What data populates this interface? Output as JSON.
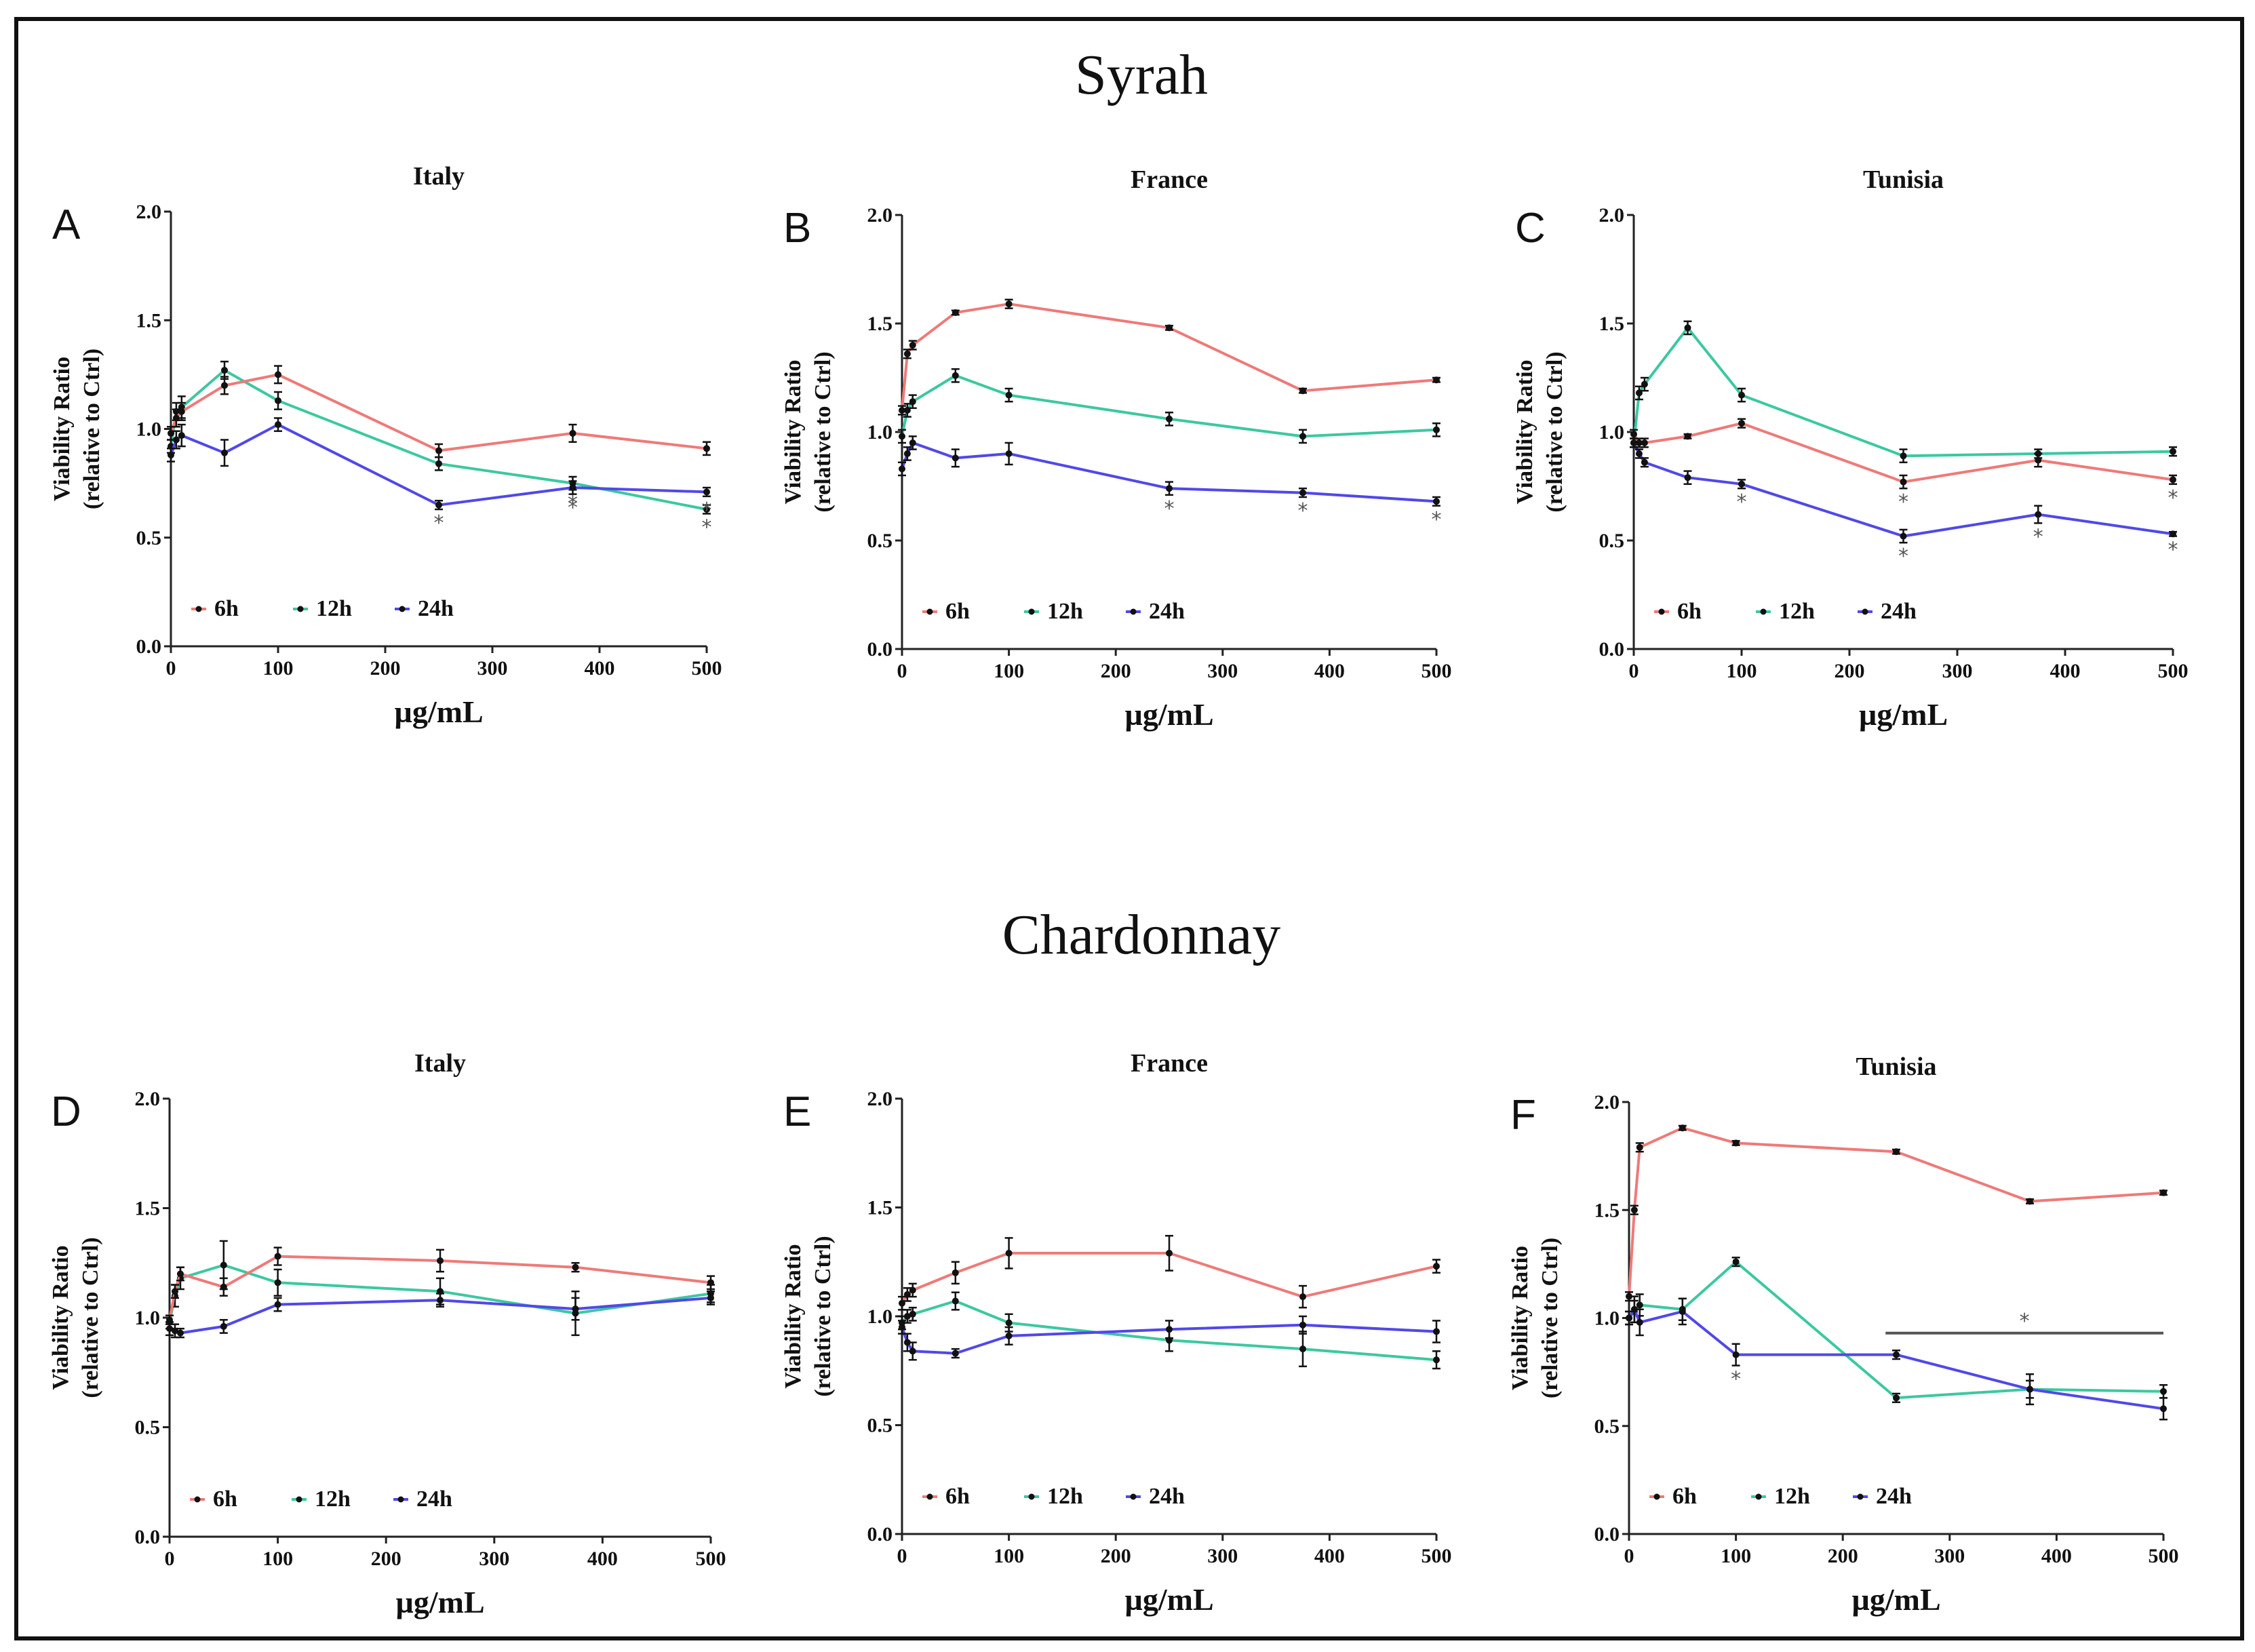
{
  "figure": {
    "sections": [
      {
        "title": "Syrah"
      },
      {
        "title": "Chardonnay"
      }
    ]
  },
  "colors": {
    "6h": "#ee7a78",
    "12h": "#3cc8a0",
    "24h": "#5148e8",
    "axis": "#222222",
    "marker": "#111111",
    "bracket": "#555555"
  },
  "chart_data": [
    {
      "type": "line",
      "panel": "A",
      "title": "Italy",
      "xlabel": "µg/mL",
      "ylabel_lines": [
        "Viability Ratio",
        "(relative to Ctrl)"
      ],
      "xlim": [
        0,
        500
      ],
      "ylim": [
        0,
        2.0
      ],
      "xticks": [
        "0",
        "100",
        "200",
        "300",
        "400",
        "500"
      ],
      "yticks": [
        "0.0",
        "0.5",
        "1.0",
        "1.5",
        "2.0"
      ],
      "legend": [
        "6h",
        "12h",
        "24h"
      ],
      "x": [
        0,
        5,
        10,
        50,
        100,
        250,
        375,
        500
      ],
      "series": [
        {
          "name": "6h",
          "values": [
            0.98,
            1.05,
            1.08,
            1.2,
            1.25,
            0.9,
            0.98,
            0.91
          ],
          "errors": [
            0.03,
            0.04,
            0.04,
            0.04,
            0.04,
            0.03,
            0.04,
            0.03
          ],
          "stars": [
            0,
            0,
            0,
            0,
            0,
            0,
            0,
            0
          ]
        },
        {
          "name": "12h",
          "values": [
            0.92,
            1.08,
            1.1,
            1.27,
            1.13,
            0.84,
            0.75,
            0.63
          ],
          "errors": [
            0.03,
            0.04,
            0.05,
            0.04,
            0.04,
            0.03,
            0.03,
            0.02
          ],
          "stars": [
            0,
            0,
            0,
            0,
            0,
            0,
            1,
            1
          ]
        },
        {
          "name": "24h",
          "values": [
            0.88,
            0.95,
            0.97,
            0.89,
            1.02,
            0.65,
            0.73,
            0.71
          ],
          "errors": [
            0.03,
            0.04,
            0.05,
            0.06,
            0.03,
            0.02,
            0.03,
            0.02
          ],
          "stars": [
            0,
            0,
            0,
            0,
            0,
            1,
            1,
            1
          ]
        }
      ]
    },
    {
      "type": "line",
      "panel": "B",
      "title": "France",
      "xlabel": "µg/mL",
      "ylabel_lines": [
        "Viability Ratio",
        "(relative to Ctrl)"
      ],
      "xlim": [
        0,
        500
      ],
      "ylim": [
        0,
        2.0
      ],
      "xticks": [
        "0",
        "100",
        "200",
        "300",
        "400",
        "500"
      ],
      "yticks": [
        "0.0",
        "0.5",
        "1.0",
        "1.5",
        "2.0"
      ],
      "legend": [
        "6h",
        "12h",
        "24h"
      ],
      "x": [
        0,
        5,
        10,
        50,
        100,
        250,
        375,
        500
      ],
      "series": [
        {
          "name": "6h",
          "values": [
            1.1,
            1.36,
            1.4,
            1.55,
            1.59,
            1.48,
            1.19,
            1.24
          ],
          "errors": [
            0.02,
            0.02,
            0.02,
            0.01,
            0.02,
            0.01,
            0.01,
            0.01
          ],
          "stars": [
            0,
            0,
            0,
            0,
            0,
            0,
            0,
            0
          ]
        },
        {
          "name": "12h",
          "values": [
            0.98,
            1.1,
            1.14,
            1.26,
            1.17,
            1.06,
            0.98,
            1.01
          ],
          "errors": [
            0.03,
            0.03,
            0.03,
            0.03,
            0.03,
            0.03,
            0.03,
            0.03
          ],
          "stars": [
            0,
            0,
            0,
            0,
            0,
            0,
            0,
            0
          ]
        },
        {
          "name": "24h",
          "values": [
            0.83,
            0.9,
            0.95,
            0.88,
            0.9,
            0.74,
            0.72,
            0.68
          ],
          "errors": [
            0.03,
            0.03,
            0.03,
            0.04,
            0.05,
            0.03,
            0.02,
            0.02
          ],
          "stars": [
            0,
            0,
            0,
            0,
            0,
            1,
            1,
            1
          ]
        }
      ]
    },
    {
      "type": "line",
      "panel": "C",
      "title": "Tunisia",
      "xlabel": "µg/mL",
      "ylabel_lines": [
        "Viability Ratio",
        "(relative to Ctrl)"
      ],
      "xlim": [
        0,
        500
      ],
      "ylim": [
        0,
        2.0
      ],
      "xticks": [
        "0",
        "100",
        "200",
        "300",
        "400",
        "500"
      ],
      "yticks": [
        "0.0",
        "0.5",
        "1.0",
        "1.5",
        "2.0"
      ],
      "legend": [
        "6h",
        "12h",
        "24h"
      ],
      "x": [
        0,
        5,
        10,
        50,
        100,
        250,
        375,
        500
      ],
      "series": [
        {
          "name": "6h",
          "values": [
            0.99,
            0.95,
            0.95,
            0.98,
            1.04,
            0.77,
            0.87,
            0.78
          ],
          "errors": [
            0.02,
            0.02,
            0.02,
            0.01,
            0.02,
            0.03,
            0.03,
            0.02
          ],
          "stars": [
            0,
            0,
            0,
            0,
            0,
            1,
            0,
            1
          ]
        },
        {
          "name": "12h",
          "values": [
            0.95,
            1.18,
            1.22,
            1.48,
            1.17,
            0.89,
            0.9,
            0.91
          ],
          "errors": [
            0.02,
            0.03,
            0.03,
            0.03,
            0.03,
            0.03,
            0.02,
            0.02
          ],
          "stars": [
            0,
            0,
            0,
            0,
            0,
            0,
            0,
            0
          ]
        },
        {
          "name": "24h",
          "values": [
            0.95,
            0.9,
            0.86,
            0.79,
            0.76,
            0.52,
            0.62,
            0.53
          ],
          "errors": [
            0.02,
            0.02,
            0.02,
            0.03,
            0.02,
            0.03,
            0.04,
            0.01
          ],
          "stars": [
            0,
            0,
            0,
            0,
            1,
            1,
            1,
            1
          ]
        }
      ]
    },
    {
      "type": "line",
      "panel": "D",
      "title": "Italy",
      "xlabel": "µg/mL",
      "ylabel_lines": [
        "Viability Ratio",
        "(relative to Ctrl)"
      ],
      "xlim": [
        0,
        500
      ],
      "ylim": [
        0,
        2.0
      ],
      "xticks": [
        "0",
        "100",
        "200",
        "300",
        "400",
        "500"
      ],
      "yticks": [
        "0.0",
        "0.5",
        "1.0",
        "1.5",
        "2.0"
      ],
      "legend": [
        "6h",
        "12h",
        "24h"
      ],
      "x": [
        0,
        5,
        10,
        50,
        100,
        250,
        375,
        500
      ],
      "series": [
        {
          "name": "6h",
          "values": [
            0.99,
            1.12,
            1.2,
            1.14,
            1.28,
            1.26,
            1.23,
            1.16
          ],
          "errors": [
            0.02,
            0.03,
            0.03,
            0.04,
            0.04,
            0.05,
            0.02,
            0.03
          ],
          "stars": [
            0,
            0,
            0,
            0,
            0,
            0,
            0,
            0
          ]
        },
        {
          "name": "12h",
          "values": [
            0.98,
            1.1,
            1.18,
            1.24,
            1.16,
            1.12,
            1.02,
            1.11
          ],
          "errors": [
            0.03,
            0.05,
            0.05,
            0.11,
            0.06,
            0.06,
            0.1,
            0.04
          ],
          "stars": [
            0,
            0,
            0,
            0,
            0,
            0,
            0,
            0
          ]
        },
        {
          "name": "24h",
          "values": [
            0.95,
            0.94,
            0.93,
            0.96,
            1.06,
            1.08,
            1.04,
            1.09
          ],
          "errors": [
            0.03,
            0.03,
            0.02,
            0.03,
            0.03,
            0.03,
            0.05,
            0.03
          ],
          "stars": [
            0,
            0,
            0,
            0,
            0,
            0,
            0,
            0
          ]
        }
      ]
    },
    {
      "type": "line",
      "panel": "E",
      "title": "France",
      "xlabel": "µg/mL",
      "ylabel_lines": [
        "Viability Ratio",
        "(relative to Ctrl)"
      ],
      "xlim": [
        0,
        500
      ],
      "ylim": [
        0,
        2.0
      ],
      "xticks": [
        "0",
        "100",
        "200",
        "300",
        "400",
        "500"
      ],
      "yticks": [
        "0.0",
        "0.5",
        "1.0",
        "1.5",
        "2.0"
      ],
      "legend": [
        "6h",
        "12h",
        "24h"
      ],
      "x": [
        0,
        5,
        10,
        50,
        100,
        250,
        375,
        500
      ],
      "series": [
        {
          "name": "6h",
          "values": [
            1.06,
            1.1,
            1.12,
            1.2,
            1.29,
            1.29,
            1.09,
            1.23
          ],
          "errors": [
            0.03,
            0.03,
            0.03,
            0.05,
            0.07,
            0.08,
            0.05,
            0.03
          ],
          "stars": [
            0,
            0,
            0,
            0,
            0,
            0,
            0,
            0
          ]
        },
        {
          "name": "12h",
          "values": [
            0.97,
            1.0,
            1.01,
            1.07,
            0.97,
            0.89,
            0.85,
            0.8
          ],
          "errors": [
            0.03,
            0.03,
            0.03,
            0.04,
            0.04,
            0.05,
            0.08,
            0.04
          ],
          "stars": [
            0,
            0,
            0,
            0,
            0,
            0,
            0,
            0
          ]
        },
        {
          "name": "24h",
          "values": [
            0.95,
            0.88,
            0.84,
            0.83,
            0.91,
            0.94,
            0.96,
            0.93
          ],
          "errors": [
            0.03,
            0.04,
            0.04,
            0.02,
            0.04,
            0.04,
            0.04,
            0.05
          ],
          "stars": [
            0,
            0,
            0,
            0,
            0,
            0,
            0,
            0
          ]
        }
      ]
    },
    {
      "type": "line",
      "panel": "F",
      "title": "Tunisia",
      "xlabel": "µg/mL",
      "ylabel_lines": [
        "Viability Ratio",
        "(relative to Ctrl)"
      ],
      "xlim": [
        0,
        500
      ],
      "ylim": [
        0,
        2.0
      ],
      "xticks": [
        "0",
        "100",
        "200",
        "300",
        "400",
        "500"
      ],
      "yticks": [
        "0.0",
        "0.5",
        "1.0",
        "1.5",
        "2.0"
      ],
      "legend": [
        "6h",
        "12h",
        "24h"
      ],
      "x": [
        0,
        5,
        10,
        50,
        100,
        250,
        375,
        500
      ],
      "bracket": {
        "x_from": 240,
        "x_to": 500,
        "y": 0.93,
        "label": "*"
      },
      "series": [
        {
          "name": "6h",
          "values": [
            1.1,
            1.5,
            1.79,
            1.88,
            1.81,
            1.77,
            1.54,
            1.58
          ],
          "errors": [
            0.02,
            0.02,
            0.02,
            0.01,
            0.01,
            0.01,
            0.01,
            0.01
          ],
          "stars": [
            0,
            0,
            0,
            0,
            0,
            0,
            0,
            0
          ]
        },
        {
          "name": "12h",
          "values": [
            1.0,
            1.03,
            1.06,
            1.04,
            1.26,
            0.63,
            0.67,
            0.66
          ],
          "errors": [
            0.03,
            0.05,
            0.05,
            0.05,
            0.02,
            0.02,
            0.04,
            0.03
          ],
          "stars": [
            0,
            0,
            0,
            0,
            0,
            0,
            0,
            0
          ]
        },
        {
          "name": "24h",
          "values": [
            1.0,
            1.04,
            0.98,
            1.03,
            0.83,
            0.83,
            0.67,
            0.58
          ],
          "errors": [
            0.03,
            0.06,
            0.06,
            0.06,
            0.05,
            0.02,
            0.07,
            0.05
          ],
          "stars": [
            0,
            0,
            0,
            0,
            1,
            0,
            0,
            0
          ]
        }
      ]
    }
  ]
}
